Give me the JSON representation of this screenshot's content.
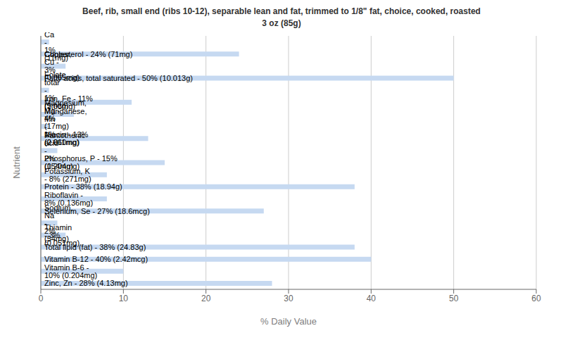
{
  "chart_data": {
    "type": "bar",
    "orientation": "horizontal",
    "title": "Beef, rib, small end (ribs 10-12), separable lean and fat, trimmed to 1/8\" fat, choice, cooked, roasted\n3 oz (85g)",
    "xlabel": "% Daily Value",
    "ylabel": "Nutrient",
    "categories": [
      "Calcium, Ca - 1% (11mg)",
      "Cholesterol - 24% (71mg)",
      "Copper, Cu - 3% (0.065mg)",
      "Fatty acids, total saturated - 50% (10.013g)",
      "Folate, total - 1% (5mcg)",
      "Iron, Fe - 11% (2.03mg)",
      "Magnesium, Mg - 4% (17mg)",
      "Manganese, Mn - 1% (0.011mg)",
      "Niacin - 13% (2.660mg)",
      "Pantothenic acid - 2% (0.204mg)",
      "Phosphorus, P - 15% (154mg)",
      "Potassium, K - 8% (271mg)",
      "Protein - 38% (18.94g)",
      "Riboflavin - 8% (0.136mg)",
      "Selenium, Se - 27% (18.6mcg)",
      "Sodium, Na - 2% (54mg)",
      "Thiamin - 3% (0.051mg)",
      "Total lipid (fat) - 38% (24.83g)",
      "Vitamin B-12 - 40% (2.42mcg)",
      "Vitamin B-6 - 10% (0.204mg)",
      "Zinc, Zn - 28% (4.13mg)"
    ],
    "values": [
      1,
      24,
      3,
      50,
      1,
      11,
      4,
      1,
      13,
      2,
      15,
      8,
      38,
      8,
      27,
      2,
      3,
      38,
      40,
      10,
      28
    ],
    "color": "#c6d9f1",
    "xlim": [
      0,
      60
    ],
    "xticks": [
      0,
      10,
      20,
      30,
      40,
      50,
      60
    ],
    "grid": true,
    "tick_labels": "x"
  }
}
